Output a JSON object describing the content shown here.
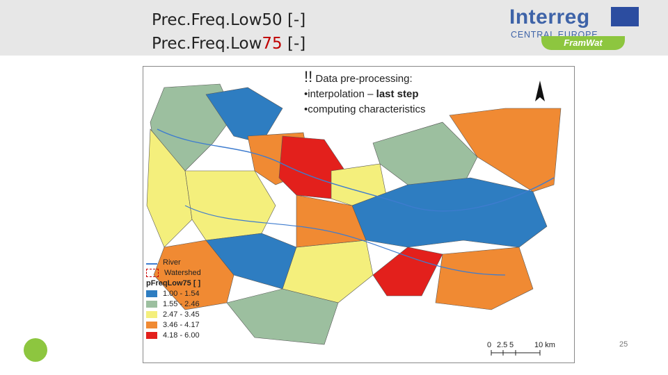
{
  "header": {
    "title_line1": "Prec.Freq.Low50 [-]",
    "title_line2": [
      "Prec.Freq.Low",
      "75",
      " [-]"
    ]
  },
  "logo": {
    "brand": "Interreg",
    "region": "CENTRAL EUROPE",
    "project": "FramWat"
  },
  "note": {
    "mark": "!!",
    "heading": "Data pre-processing:",
    "bullet1": [
      "•interpolation – ",
      "last step"
    ],
    "bullet2": "•computing characteristics"
  },
  "legend": {
    "river": "River",
    "watershed": "Watershed",
    "title": "pFreqLow75 [ ]",
    "classes": [
      {
        "label": "1.00 - 1.54",
        "color": "#2e7dc1"
      },
      {
        "label": "1.55 - 2.46",
        "color": "#9cbf9f"
      },
      {
        "label": "2.47 - 3.45",
        "color": "#f4ef7c"
      },
      {
        "label": "3.46 - 4.17",
        "color": "#f08a33"
      },
      {
        "label": "4.18 - 6.00",
        "color": "#e3201c"
      }
    ]
  },
  "scale": {
    "labels": [
      "0",
      "2.5",
      "5",
      "10 km"
    ]
  },
  "page_number": "25"
}
